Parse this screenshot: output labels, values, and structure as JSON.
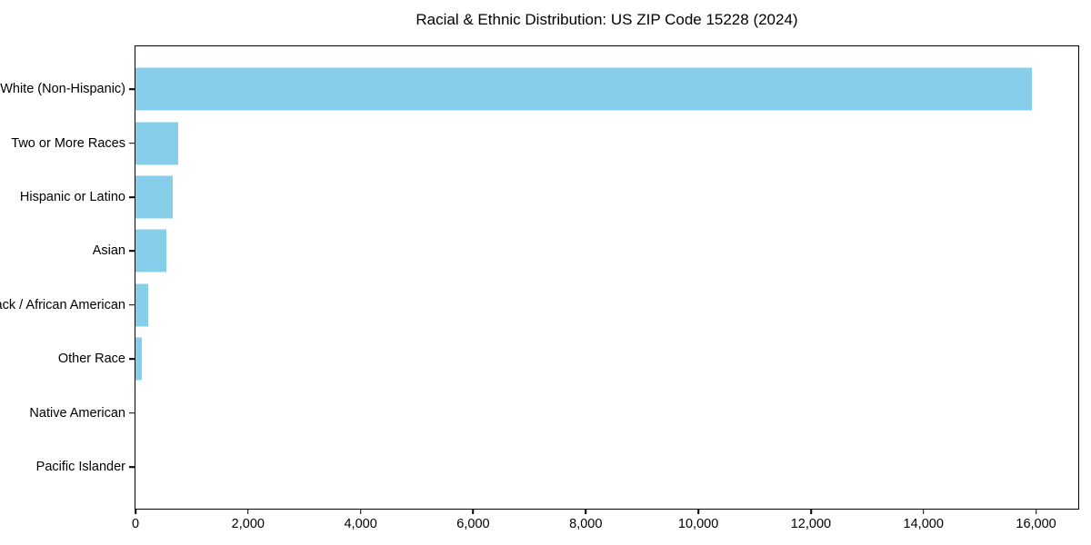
{
  "chart_data": {
    "type": "bar",
    "orientation": "horizontal",
    "title": "Racial & Ethnic Distribution: US ZIP Code 15228 (2024)",
    "categories": [
      "White (Non-Hispanic)",
      "Two or More Races",
      "Hispanic or Latino",
      "Asian",
      "Black / African American",
      "Other Race",
      "Native American",
      "Pacific Islander"
    ],
    "values": [
      15920,
      755,
      655,
      545,
      230,
      120,
      0,
      0
    ],
    "xlabel": "",
    "ylabel": "",
    "xlim": [
      0,
      16750
    ],
    "x_ticks": [
      0,
      2000,
      4000,
      6000,
      8000,
      10000,
      12000,
      14000,
      16000
    ],
    "x_tick_labels": [
      "0",
      "2,000",
      "4,000",
      "6,000",
      "8,000",
      "10,000",
      "12,000",
      "14,000",
      "16,000"
    ],
    "bar_color": "#87CEEB",
    "background_color": "#FFFFFF",
    "spine_color": "#000000",
    "text_color": "#000000",
    "grid": false,
    "legend": null
  }
}
